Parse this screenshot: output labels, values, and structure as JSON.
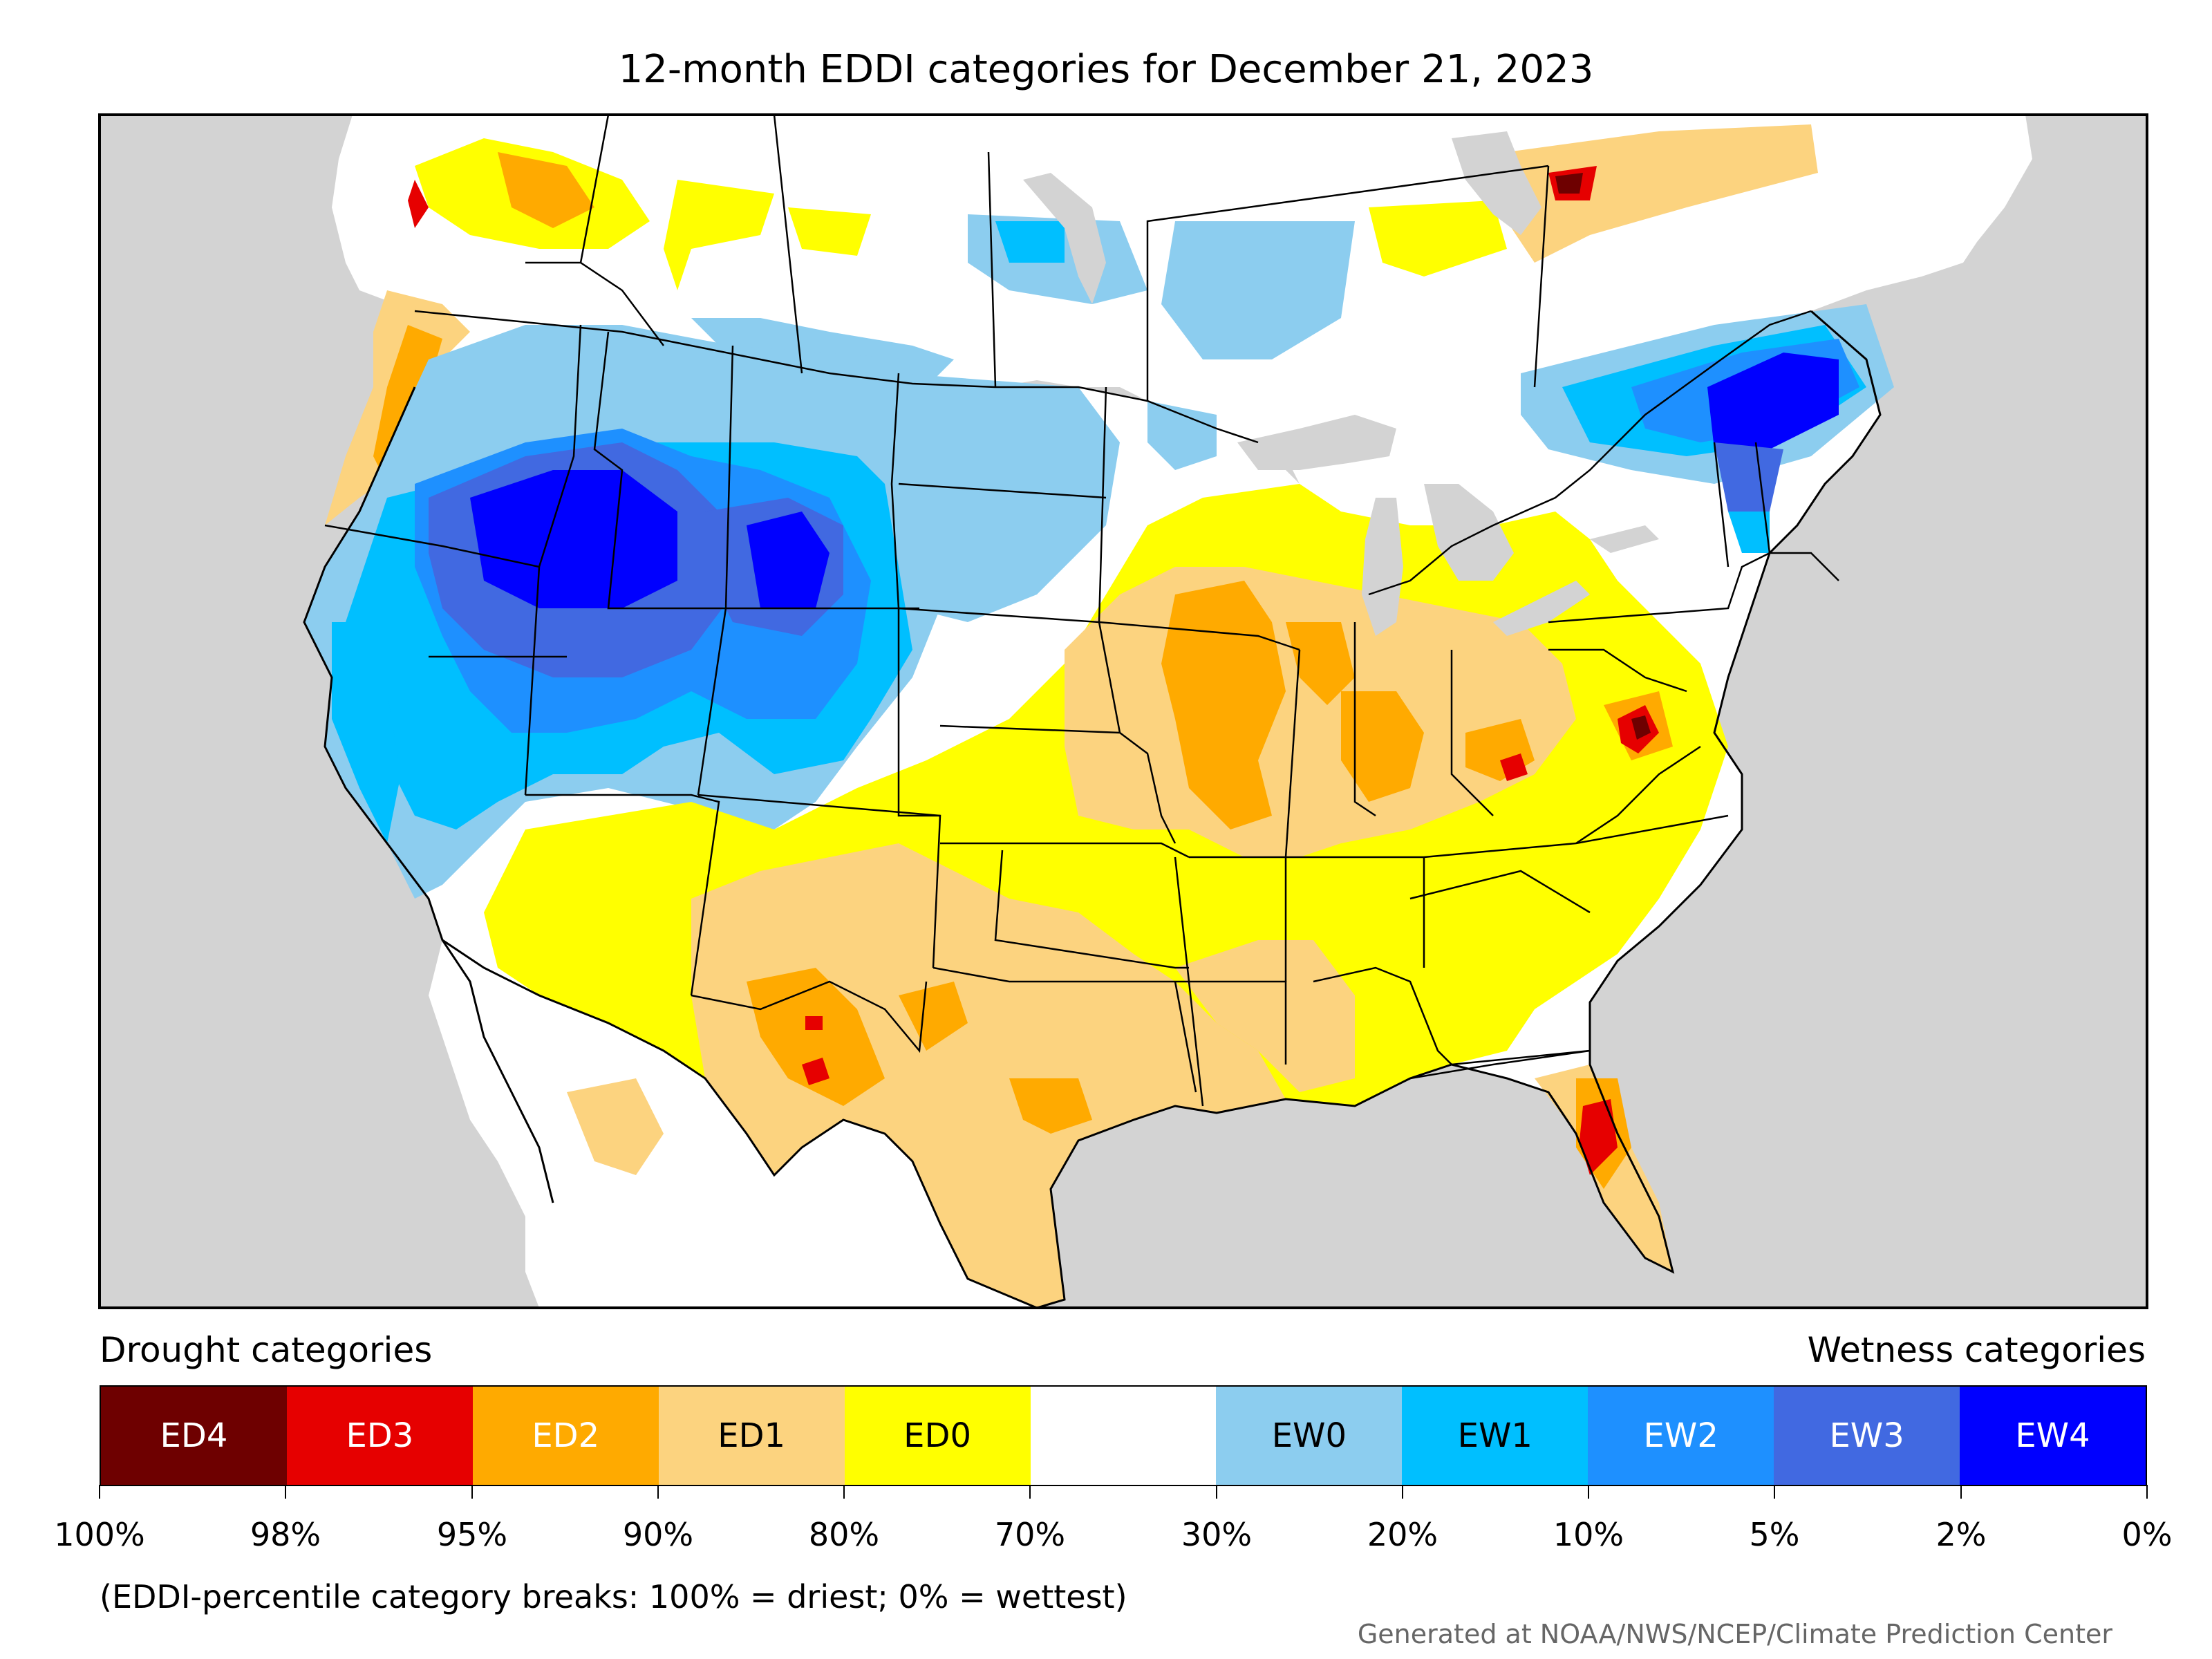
{
  "title": "12-month EDDI categories for December 21, 2023",
  "map": {
    "ocean_color": "#d3d3d3",
    "land_color": "#ffffff",
    "border_color": "#000000"
  },
  "legend": {
    "drought_heading": "Drought categories",
    "wetness_heading": "Wetness categories",
    "categories": [
      {
        "label": "ED4",
        "color": "#6e0000",
        "text_color": "#ffffff"
      },
      {
        "label": "ED3",
        "color": "#e60000",
        "text_color": "#ffffff"
      },
      {
        "label": "ED2",
        "color": "#ffaa00",
        "text_color": "#ffffff"
      },
      {
        "label": "ED1",
        "color": "#fcd37f",
        "text_color": "#000000"
      },
      {
        "label": "ED0",
        "color": "#ffff00",
        "text_color": "#000000"
      },
      {
        "label": "",
        "color": "#ffffff",
        "text_color": "#000000"
      },
      {
        "label": "EW0",
        "color": "#8ccdef",
        "text_color": "#000000"
      },
      {
        "label": "EW1",
        "color": "#00bfff",
        "text_color": "#000000"
      },
      {
        "label": "EW2",
        "color": "#1e90ff",
        "text_color": "#ffffff"
      },
      {
        "label": "EW3",
        "color": "#4169e1",
        "text_color": "#ffffff"
      },
      {
        "label": "EW4",
        "color": "#0000ff",
        "text_color": "#ffffff"
      }
    ],
    "tick_labels": [
      "100%",
      "98%",
      "95%",
      "90%",
      "80%",
      "70%",
      "30%",
      "20%",
      "10%",
      "5%",
      "2%",
      "0%"
    ],
    "note": "(EDDI-percentile category breaks: 100% = driest; 0% = wettest)"
  },
  "credit": "Generated at NOAA/NWS/NCEP/Climate Prediction Center"
}
